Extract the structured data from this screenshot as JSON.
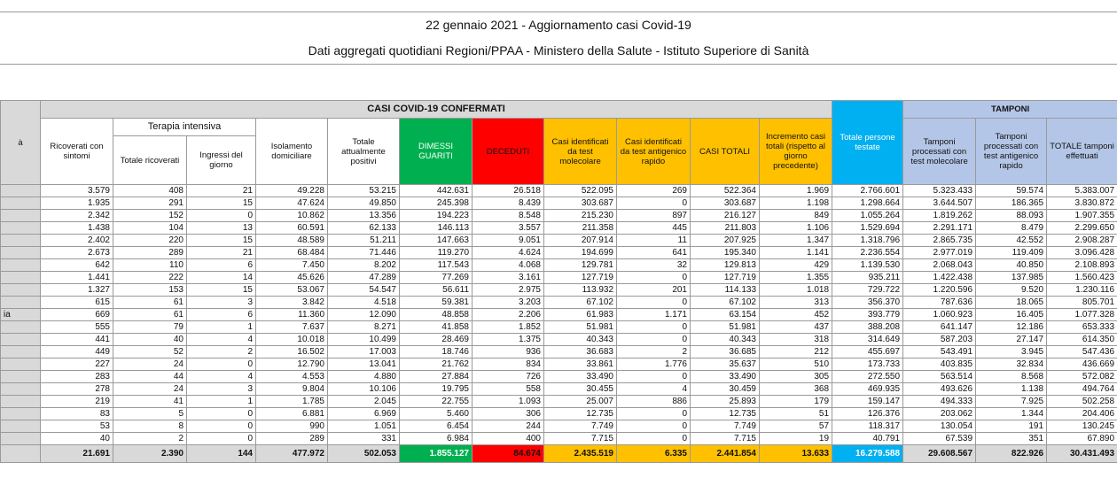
{
  "header": {
    "title": "22 gennaio 2021 - Aggiornamento casi Covid-19",
    "subtitle": "Dati aggregati quotidiani Regioni/PPAA - Ministero della Salute - Istituto Superiore di Sanità"
  },
  "table": {
    "corner": "à",
    "group_title": "CASI COVID-19 CONFERMATI",
    "terapia_title": "Terapia intensiva",
    "tamponi_title": "TAMPONI",
    "columns": [
      "Ricoverati con sintomi",
      "Totale ricoverati",
      "Ingressi del giorno",
      "Isolamento domiciliare",
      "Totale attualmente positivi",
      "DIMESSI GUARITI",
      "DECEDUTI",
      "Casi identificati da test molecolare",
      "Casi identificati da test antigenico rapido",
      "CASI TOTALI",
      "Incremento casi totali (rispetto al giorno precedente)",
      "Totale persone testate",
      "Tamponi processati con test molecolare",
      "Tamponi processati con test antigenico rapido",
      "TOTALE tamponi effettuati"
    ],
    "region_labels": [
      null,
      null,
      null,
      null,
      null,
      null,
      null,
      null,
      null,
      null,
      "ia",
      null,
      null,
      null,
      null,
      null,
      null,
      null,
      null,
      null,
      null
    ],
    "rows": [
      [
        "3.579",
        "408",
        "21",
        "49.228",
        "53.215",
        "442.631",
        "26.518",
        "522.095",
        "269",
        "522.364",
        "1.969",
        "2.766.601",
        "5.323.433",
        "59.574",
        "5.383.007"
      ],
      [
        "1.935",
        "291",
        "15",
        "47.624",
        "49.850",
        "245.398",
        "8.439",
        "303.687",
        "0",
        "303.687",
        "1.198",
        "1.298.664",
        "3.644.507",
        "186.365",
        "3.830.872"
      ],
      [
        "2.342",
        "152",
        "0",
        "10.862",
        "13.356",
        "194.223",
        "8.548",
        "215.230",
        "897",
        "216.127",
        "849",
        "1.055.264",
        "1.819.262",
        "88.093",
        "1.907.355"
      ],
      [
        "1.438",
        "104",
        "13",
        "60.591",
        "62.133",
        "146.113",
        "3.557",
        "211.358",
        "445",
        "211.803",
        "1.106",
        "1.529.694",
        "2.291.171",
        "8.479",
        "2.299.650"
      ],
      [
        "2.402",
        "220",
        "15",
        "48.589",
        "51.211",
        "147.663",
        "9.051",
        "207.914",
        "11",
        "207.925",
        "1.347",
        "1.318.796",
        "2.865.735",
        "42.552",
        "2.908.287"
      ],
      [
        "2.673",
        "289",
        "21",
        "68.484",
        "71.446",
        "119.270",
        "4.624",
        "194.699",
        "641",
        "195.340",
        "1.141",
        "2.236.554",
        "2.977.019",
        "119.409",
        "3.096.428"
      ],
      [
        "642",
        "110",
        "6",
        "7.450",
        "8.202",
        "117.543",
        "4.068",
        "129.781",
        "32",
        "129.813",
        "429",
        "1.139.530",
        "2.068.043",
        "40.850",
        "2.108.893"
      ],
      [
        "1.441",
        "222",
        "14",
        "45.626",
        "47.289",
        "77.269",
        "3.161",
        "127.719",
        "0",
        "127.719",
        "1.355",
        "935.211",
        "1.422.438",
        "137.985",
        "1.560.423"
      ],
      [
        "1.327",
        "153",
        "15",
        "53.067",
        "54.547",
        "56.611",
        "2.975",
        "113.932",
        "201",
        "114.133",
        "1.018",
        "729.722",
        "1.220.596",
        "9.520",
        "1.230.116"
      ],
      [
        "615",
        "61",
        "3",
        "3.842",
        "4.518",
        "59.381",
        "3.203",
        "67.102",
        "0",
        "67.102",
        "313",
        "356.370",
        "787.636",
        "18.065",
        "805.701"
      ],
      [
        "669",
        "61",
        "6",
        "11.360",
        "12.090",
        "48.858",
        "2.206",
        "61.983",
        "1.171",
        "63.154",
        "452",
        "393.779",
        "1.060.923",
        "16.405",
        "1.077.328"
      ],
      [
        "555",
        "79",
        "1",
        "7.637",
        "8.271",
        "41.858",
        "1.852",
        "51.981",
        "0",
        "51.981",
        "437",
        "388.208",
        "641.147",
        "12.186",
        "653.333"
      ],
      [
        "441",
        "40",
        "4",
        "10.018",
        "10.499",
        "28.469",
        "1.375",
        "40.343",
        "0",
        "40.343",
        "318",
        "314.649",
        "587.203",
        "27.147",
        "614.350"
      ],
      [
        "449",
        "52",
        "2",
        "16.502",
        "17.003",
        "18.746",
        "936",
        "36.683",
        "2",
        "36.685",
        "212",
        "455.697",
        "543.491",
        "3.945",
        "547.436"
      ],
      [
        "227",
        "24",
        "0",
        "12.790",
        "13.041",
        "21.762",
        "834",
        "33.861",
        "1.776",
        "35.637",
        "510",
        "173.733",
        "403.835",
        "32.834",
        "436.669"
      ],
      [
        "283",
        "44",
        "4",
        "4.553",
        "4.880",
        "27.884",
        "726",
        "33.490",
        "0",
        "33.490",
        "305",
        "272.550",
        "563.514",
        "8.568",
        "572.082"
      ],
      [
        "278",
        "24",
        "3",
        "9.804",
        "10.106",
        "19.795",
        "558",
        "30.455",
        "4",
        "30.459",
        "368",
        "469.935",
        "493.626",
        "1.138",
        "494.764"
      ],
      [
        "219",
        "41",
        "1",
        "1.785",
        "2.045",
        "22.755",
        "1.093",
        "25.007",
        "886",
        "25.893",
        "179",
        "159.147",
        "494.333",
        "7.925",
        "502.258"
      ],
      [
        "83",
        "5",
        "0",
        "6.881",
        "6.969",
        "5.460",
        "306",
        "12.735",
        "0",
        "12.735",
        "51",
        "126.376",
        "203.062",
        "1.344",
        "204.406"
      ],
      [
        "53",
        "8",
        "0",
        "990",
        "1.051",
        "6.454",
        "244",
        "7.749",
        "0",
        "7.749",
        "57",
        "118.317",
        "130.054",
        "191",
        "130.245"
      ],
      [
        "40",
        "2",
        "0",
        "289",
        "331",
        "6.984",
        "400",
        "7.715",
        "0",
        "7.715",
        "19",
        "40.791",
        "67.539",
        "351",
        "67.890"
      ]
    ],
    "totals": [
      "21.691",
      "2.390",
      "144",
      "477.972",
      "502.053",
      "1.855.127",
      "84.674",
      "2.435.519",
      "6.335",
      "2.441.854",
      "13.633",
      "16.279.588",
      "29.608.567",
      "822.926",
      "30.431.493"
    ]
  }
}
